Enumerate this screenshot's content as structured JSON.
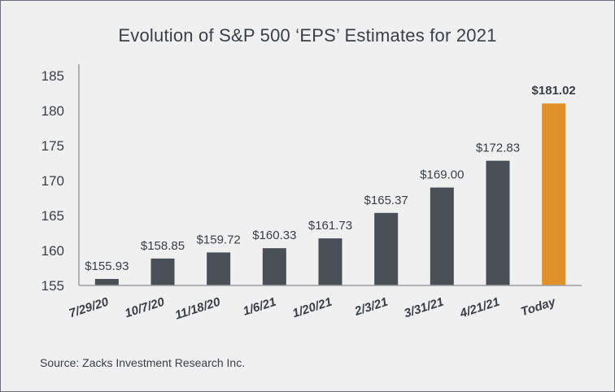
{
  "chart_data": {
    "type": "bar",
    "title": "Evolution of S&P 500 ‘EPS’ Estimates for 2021",
    "categories": [
      "7/29/20",
      "10/7/20",
      "11/18/20",
      "1/6/21",
      "1/20/21",
      "2/3/21",
      "3/31/21",
      "4/21/21",
      "Today"
    ],
    "values": [
      155.93,
      158.85,
      159.72,
      160.33,
      161.73,
      165.37,
      169.0,
      172.83,
      181.02
    ],
    "data_labels": [
      "$155.93",
      "$158.85",
      "$159.72",
      "$160.33",
      "$161.73",
      "$165.37",
      "$169.00",
      "$172.83",
      "$181.02"
    ],
    "highlight_index": 8,
    "yticks": [
      "185",
      "180",
      "175",
      "170",
      "165",
      "160",
      "155"
    ],
    "ylim": [
      155,
      185
    ],
    "xlabel": "",
    "ylabel": "",
    "grid": false,
    "colors": {
      "bar": "#4a4e55",
      "highlight": "#e0912a",
      "axis": "#9a9da1",
      "text": "#3a3f45",
      "background": "#f0f0f0"
    }
  },
  "source": "Source: Zacks Investment Research Inc."
}
